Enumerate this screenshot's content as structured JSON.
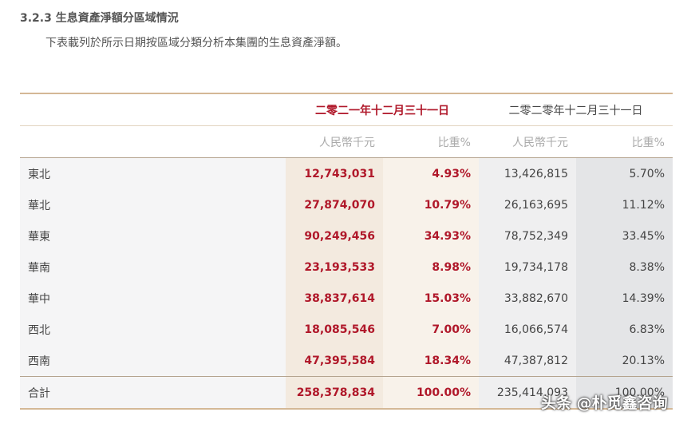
{
  "header": {
    "title": "3.2.3 生息資產淨額分區域情況",
    "subtitle": "下表載列於所示日期按區域分類分析本集團的生息資產淨額。"
  },
  "table": {
    "periods": [
      "二零二一年十二月三十一日",
      "二零二零年十二月三十一日"
    ],
    "subheaders": [
      "人民幣千元",
      "比重%",
      "人民幣千元",
      "比重%"
    ],
    "rows": [
      [
        "東北",
        "12,743,031",
        "4.93%",
        "13,426,815",
        "5.70%"
      ],
      [
        "華北",
        "27,874,070",
        "10.79%",
        "26,163,695",
        "11.12%"
      ],
      [
        "華東",
        "90,249,456",
        "34.93%",
        "78,752,349",
        "33.45%"
      ],
      [
        "華南",
        "23,193,533",
        "8.98%",
        "19,734,178",
        "8.38%"
      ],
      [
        "華中",
        "38,837,614",
        "15.03%",
        "33,882,670",
        "14.39%"
      ],
      [
        "西北",
        "18,085,546",
        "7.00%",
        "16,066,574",
        "6.83%"
      ],
      [
        "西南",
        "47,395,584",
        "18.34%",
        "47,387,812",
        "20.13%"
      ],
      [
        "合計",
        "258,378,834",
        "100.00%",
        "235,414,093",
        "100.00%"
      ]
    ]
  },
  "watermark": "头条 @朴觅鑫咨询"
}
